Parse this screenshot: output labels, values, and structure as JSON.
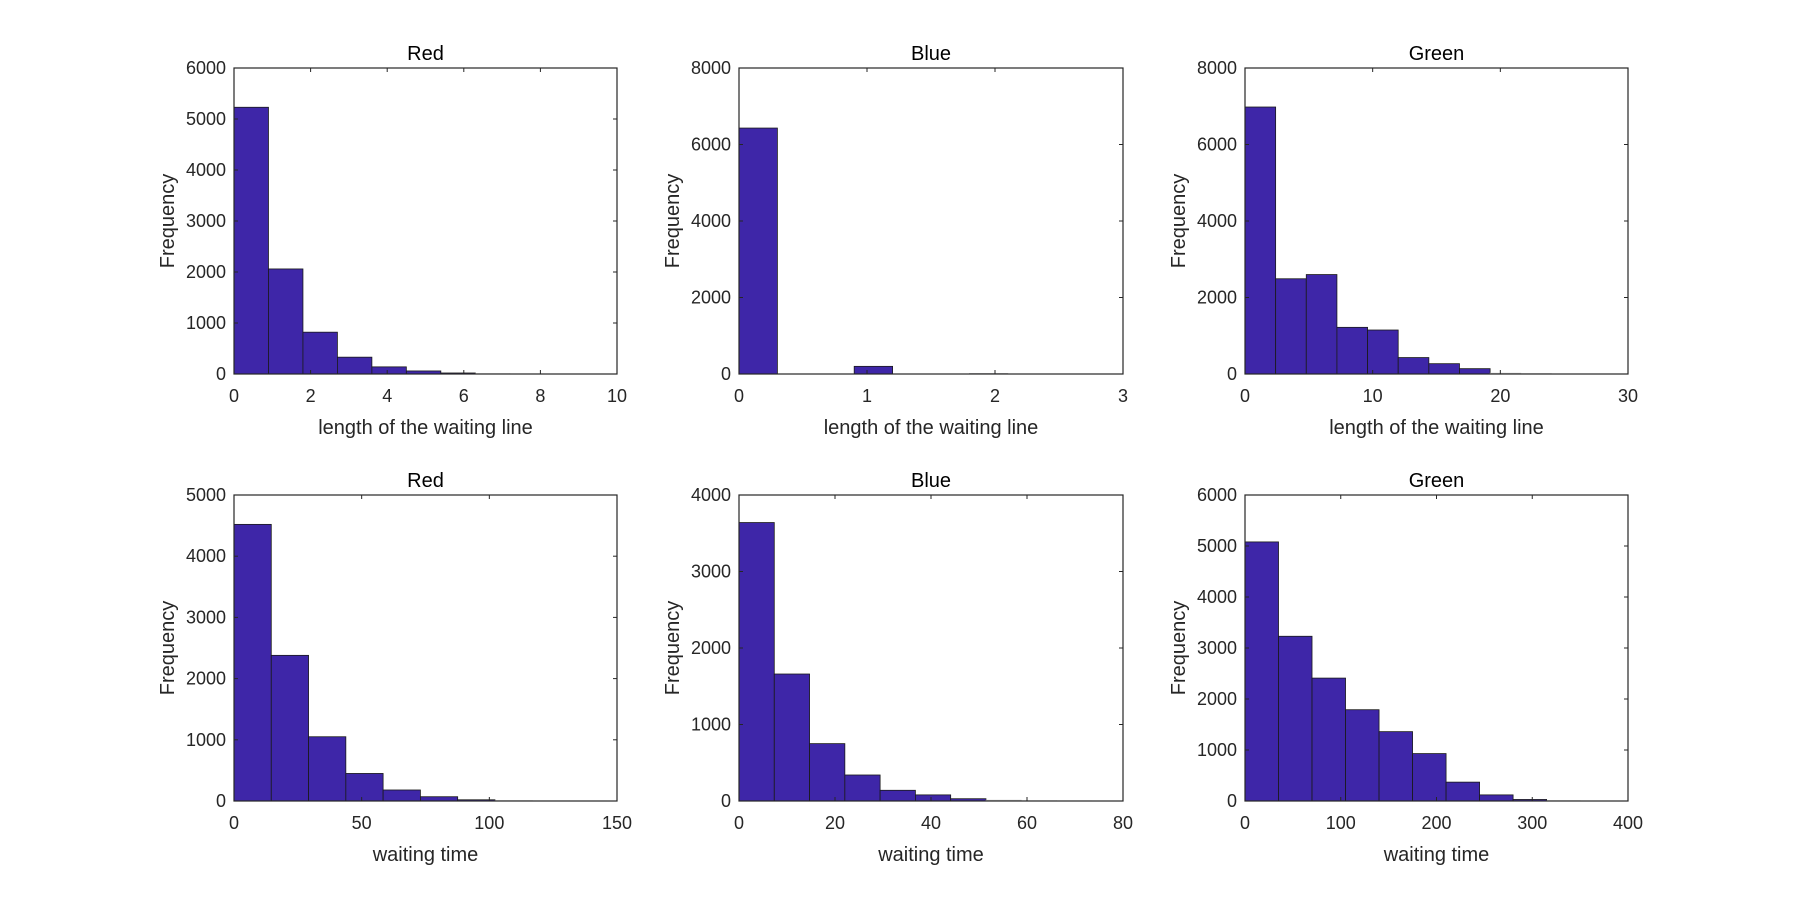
{
  "figure": {
    "background": "#ffffff",
    "bar_color": "#3e26a8",
    "bar_edge": "#1a1a1a",
    "axis_color": "#262626"
  },
  "chart_data": [
    {
      "type": "bar",
      "title": "Red",
      "xlabel": "length of the waiting line",
      "ylabel": "Frequency",
      "xlim": [
        0,
        10
      ],
      "ylim": [
        0,
        6000
      ],
      "xticks": [
        0,
        2,
        4,
        6,
        8,
        10
      ],
      "yticks": [
        0,
        1000,
        2000,
        3000,
        4000,
        5000,
        6000
      ],
      "bin_edges": [
        0,
        0.9,
        1.8,
        2.7,
        3.6,
        4.5,
        5.4,
        6.3,
        7.2,
        8.1,
        9.0
      ],
      "values": [
        5230,
        2060,
        820,
        330,
        140,
        60,
        20,
        5,
        3,
        2
      ],
      "grid": false
    },
    {
      "type": "bar",
      "title": "Blue",
      "xlabel": "length of the waiting line",
      "ylabel": "Frequency",
      "xlim": [
        0,
        3
      ],
      "ylim": [
        0,
        8000
      ],
      "xticks": [
        0,
        1,
        2,
        3
      ],
      "yticks": [
        0,
        2000,
        4000,
        6000,
        8000
      ],
      "bin_edges": [
        0,
        0.3,
        0.6,
        0.9,
        1.2,
        1.5,
        1.8,
        2.1
      ],
      "values": [
        6430,
        0,
        0,
        200,
        0,
        0,
        15
      ],
      "grid": false
    },
    {
      "type": "bar",
      "title": "Green",
      "xlabel": "length of the waiting line",
      "ylabel": "Frequency",
      "xlim": [
        0,
        30
      ],
      "ylim": [
        0,
        8000
      ],
      "xticks": [
        0,
        10,
        20,
        30
      ],
      "yticks": [
        0,
        2000,
        4000,
        6000,
        8000
      ],
      "bin_edges": [
        0,
        2.4,
        4.8,
        7.2,
        9.6,
        12.0,
        14.4,
        16.8,
        19.2,
        21.6,
        24.0
      ],
      "values": [
        6980,
        2490,
        2600,
        1220,
        1150,
        430,
        270,
        140,
        20,
        8
      ],
      "grid": false
    },
    {
      "type": "bar",
      "title": "Red",
      "xlabel": "waiting time",
      "ylabel": "Frequency",
      "xlim": [
        0,
        150
      ],
      "ylim": [
        0,
        5000
      ],
      "xticks": [
        0,
        50,
        100,
        150
      ],
      "yticks": [
        0,
        1000,
        2000,
        3000,
        4000,
        5000
      ],
      "bin_edges": [
        0,
        14.6,
        29.2,
        43.8,
        58.4,
        73.0,
        87.6,
        102.2,
        116.8,
        131.4,
        146.0
      ],
      "values": [
        4520,
        2380,
        1050,
        450,
        180,
        70,
        20,
        5,
        3,
        2
      ],
      "grid": false
    },
    {
      "type": "bar",
      "title": "Blue",
      "xlabel": "waiting time",
      "ylabel": "Frequency",
      "xlim": [
        0,
        80
      ],
      "ylim": [
        0,
        4000
      ],
      "xticks": [
        0,
        20,
        40,
        60,
        80
      ],
      "yticks": [
        0,
        1000,
        2000,
        3000,
        4000
      ],
      "bin_edges": [
        0,
        7.35,
        14.7,
        22.05,
        29.4,
        36.75,
        44.1,
        51.45,
        58.8,
        66.15,
        73.5
      ],
      "values": [
        3640,
        1660,
        750,
        340,
        140,
        80,
        30,
        10,
        3,
        2
      ],
      "grid": false
    },
    {
      "type": "bar",
      "title": "Green",
      "xlabel": "waiting time",
      "ylabel": "Frequency",
      "xlim": [
        0,
        400
      ],
      "ylim": [
        0,
        6000
      ],
      "xticks": [
        0,
        100,
        200,
        300,
        400
      ],
      "yticks": [
        0,
        1000,
        2000,
        3000,
        4000,
        5000,
        6000
      ],
      "bin_edges": [
        0,
        35,
        70,
        105,
        140,
        175,
        210,
        245,
        280,
        315,
        350
      ],
      "values": [
        5080,
        3230,
        2410,
        1790,
        1360,
        930,
        370,
        120,
        30,
        5
      ],
      "grid": false
    }
  ]
}
